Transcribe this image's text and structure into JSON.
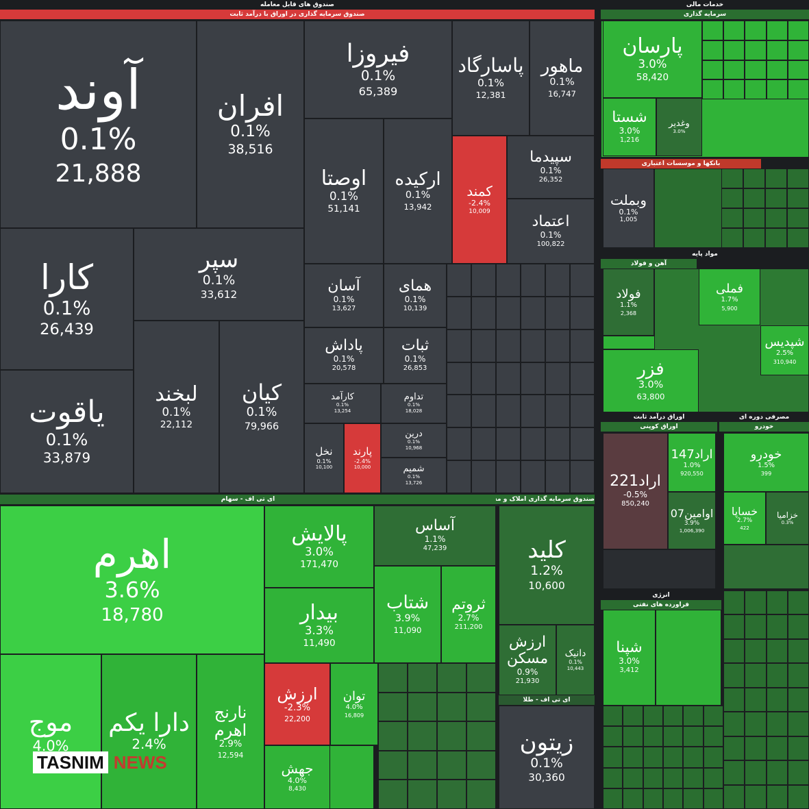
{
  "headers": [
    "صندوق های قابل معامله",
    "صندوق سرمایه گذاری در اوراق با درآمد ثابت",
    "ای تی اف - سهام",
    "صندوق سرمایه گذاری املاک و مستغلات",
    "ای تی اف - طلا",
    "خدمات مالی",
    "سرمایه گذاری",
    "بانکها و موسسات اعتباری",
    "مواد پایه",
    "آهن و فولاد",
    "اوراق درآمد ثابت",
    "اوراق کوپنی",
    "مصرفی دوره ای",
    "خودرو",
    "انرژی",
    "فراورده های نفتی"
  ],
  "tiles": [
    {
      "name": "آوند",
      "change": "0.1%",
      "value": "21,888"
    },
    {
      "name": "افران",
      "change": "0.1%",
      "value": "38,516"
    },
    {
      "name": "کارا",
      "change": "0.1%",
      "value": "26,439"
    },
    {
      "name": "سپر",
      "change": "0.1%",
      "value": "33,612"
    },
    {
      "name": "یاقوت",
      "change": "0.1%",
      "value": "33,879"
    },
    {
      "name": "لبخند",
      "change": "0.1%",
      "value": "22,112"
    },
    {
      "name": "کیان",
      "change": "0.1%",
      "value": "79,966"
    },
    {
      "name": "فیروزا",
      "change": "0.1%",
      "value": "65,389"
    },
    {
      "name": "پاسارگاد",
      "change": "0.1%",
      "value": "12,381"
    },
    {
      "name": "ماهور",
      "change": "0.1%",
      "value": "16,747"
    },
    {
      "name": "اوصتا",
      "change": "0.1%",
      "value": "51,141"
    },
    {
      "name": "ارکیده",
      "change": "0.1%",
      "value": "13,942"
    },
    {
      "name": "کمند",
      "change": "-2.4%",
      "value": "10,009"
    },
    {
      "name": "سپیدما",
      "change": "0.1%",
      "value": "26,352"
    },
    {
      "name": "اعتماد",
      "change": "0.1%",
      "value": "100,822"
    },
    {
      "name": "آسان",
      "change": "0.1%",
      "value": "13,627"
    },
    {
      "name": "همای",
      "change": "0.1%",
      "value": "10,139"
    },
    {
      "name": "پاداش",
      "change": "0.1%",
      "value": "20,578"
    },
    {
      "name": "ثبات",
      "change": "0.1%",
      "value": "26,853"
    },
    {
      "name": "کارآمد",
      "change": "0.1%",
      "value": "13,254"
    },
    {
      "name": "تداوم",
      "change": "0.1%",
      "value": "18,028"
    },
    {
      "name": "نخل",
      "change": "0.1%",
      "value": "10,100"
    },
    {
      "name": "پارند",
      "change": "-2.4%",
      "value": "10,000"
    },
    {
      "name": "درین",
      "change": "0.1%",
      "value": "10,968"
    },
    {
      "name": "شمیم",
      "change": "0.1%",
      "value": "13,726"
    },
    {
      "name": "اهرم",
      "change": "3.6%",
      "value": "18,780"
    },
    {
      "name": "موج",
      "change": "4.0%",
      "value": ""
    },
    {
      "name": "دارا یکم",
      "change": "2.4%",
      "value": ""
    },
    {
      "name": "نارنج اهرم",
      "change": "2.9%",
      "value": "12,594"
    },
    {
      "name": "پالایش",
      "change": "3.0%",
      "value": "171,470"
    },
    {
      "name": "آساس",
      "change": "1.1%",
      "value": "47,239"
    },
    {
      "name": "بیدار",
      "change": "3.3%",
      "value": "11,490"
    },
    {
      "name": "شتاب",
      "change": "3.9%",
      "value": "11,090"
    },
    {
      "name": "ثروتم",
      "change": "2.7%",
      "value": "211,200"
    },
    {
      "name": "ارزش",
      "change": "-2.3%",
      "value": "22,200"
    },
    {
      "name": "توان",
      "change": "4.0%",
      "value": "16,809"
    },
    {
      "name": "جهش",
      "change": "4.0%",
      "value": "8,430"
    },
    {
      "name": "کلید",
      "change": "1.2%",
      "value": "10,600"
    },
    {
      "name": "ارزش مسکن",
      "change": "0.9%",
      "value": "21,930"
    },
    {
      "name": "دانیک",
      "change": "0.1%",
      "value": "10,443"
    },
    {
      "name": "زیتون",
      "change": "0.1%",
      "value": "30,360"
    },
    {
      "name": "پارسان",
      "change": "3.0%",
      "value": "58,420"
    },
    {
      "name": "شستا",
      "change": "3.0%",
      "value": "1,216"
    },
    {
      "name": "وغدیر",
      "change": "3.0%",
      "value": ""
    },
    {
      "name": "وبملت",
      "change": "0.1%",
      "value": "1,005"
    },
    {
      "name": "فولاد",
      "change": "1.1%",
      "value": "2,368"
    },
    {
      "name": "فملی",
      "change": "1.7%",
      "value": "5,900"
    },
    {
      "name": "شپدیس",
      "change": "2.5%",
      "value": "310,940"
    },
    {
      "name": "فزر",
      "change": "3.0%",
      "value": "63,800"
    },
    {
      "name": "اراد221",
      "change": "-0.5%",
      "value": "850,240"
    },
    {
      "name": "اراد147",
      "change": "1.0%",
      "value": "920,550"
    },
    {
      "name": "اوامین07",
      "change": "3.9%",
      "value": "1,006,390"
    },
    {
      "name": "خودرو",
      "change": "1.5%",
      "value": "399"
    },
    {
      "name": "خساپا",
      "change": "2.7%",
      "value": "422"
    },
    {
      "name": "خزامیا",
      "change": "0.3%",
      "value": ""
    },
    {
      "name": "شپنا",
      "change": "3.0%",
      "value": "3,412"
    }
  ],
  "watermark": [
    "TASNIM",
    "NEWS"
  ]
}
